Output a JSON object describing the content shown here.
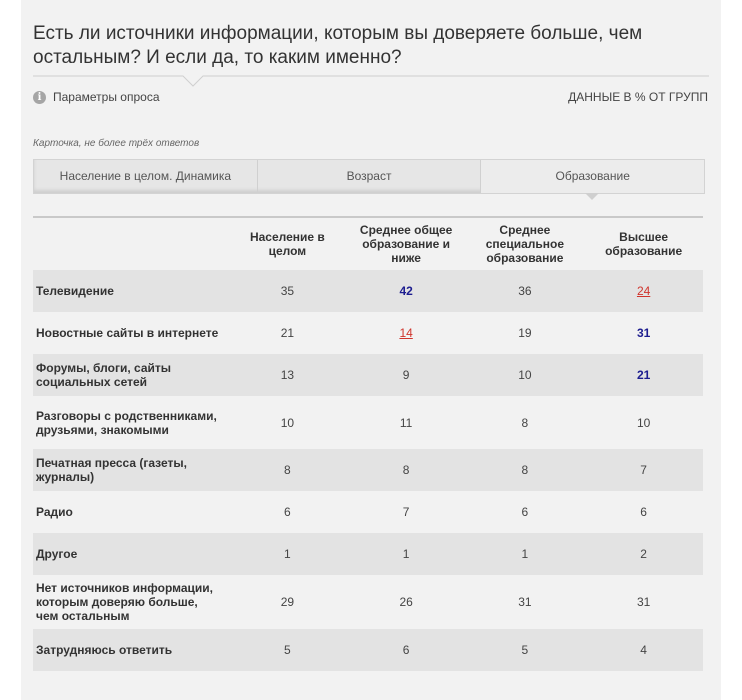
{
  "title": "Есть ли источники информации, которым вы доверяете больше, чем остальным? И если да, то каким именно?",
  "params_label": "Параметры опроса",
  "info_icon": "i",
  "units_label": "ДАННЫЕ В % ОТ ГРУПП",
  "note": "Карточка, не более трёх ответов",
  "tabs": [
    "Население в целом. Динамика",
    "Возраст",
    "Образование"
  ],
  "active_tab": 2,
  "colors": {
    "high": "#1d1d8f",
    "low": "#d0342c"
  },
  "table": {
    "headers": [
      "",
      "Население в целом",
      "Среднее общее образование и ниже",
      "Среднее специальное образование",
      "Высшее образование"
    ],
    "rows": [
      {
        "category": "Телевидение",
        "values": [
          "35",
          "42",
          "36",
          "24"
        ],
        "marks": [
          "",
          "hi",
          "",
          "lo"
        ],
        "h": 42
      },
      {
        "category": "Новостные сайты в интернете",
        "values": [
          "21",
          "14",
          "19",
          "31"
        ],
        "marks": [
          "",
          "lo",
          "",
          "hi"
        ],
        "h": 42
      },
      {
        "category": "Форумы, блоги, сайты социальных сетей",
        "values": [
          "13",
          "9",
          "10",
          "21"
        ],
        "marks": [
          "",
          "",
          "",
          "hi"
        ],
        "h": 42
      },
      {
        "category": "Разговоры с родственниками, друзьями, знакомыми",
        "values": [
          "10",
          "11",
          "8",
          "10"
        ],
        "marks": [
          "",
          "",
          "",
          ""
        ],
        "h": 53
      },
      {
        "category": "Печатная пресса (газеты, журналы)",
        "values": [
          "8",
          "8",
          "8",
          "7"
        ],
        "marks": [
          "",
          "",
          "",
          ""
        ],
        "h": 42
      },
      {
        "category": "Радио",
        "values": [
          "6",
          "7",
          "6",
          "6"
        ],
        "marks": [
          "",
          "",
          "",
          ""
        ],
        "h": 42
      },
      {
        "category": "Другое",
        "values": [
          "1",
          "1",
          "1",
          "2"
        ],
        "marks": [
          "",
          "",
          "",
          ""
        ],
        "h": 42
      },
      {
        "category": "Нет источников информации, которым доверяю больше, чем остальным",
        "values": [
          "29",
          "26",
          "31",
          "31"
        ],
        "marks": [
          "",
          "",
          "",
          ""
        ],
        "h": 54
      },
      {
        "category": "Затрудняюсь ответить",
        "values": [
          "5",
          "6",
          "5",
          "4"
        ],
        "marks": [
          "",
          "",
          "",
          ""
        ],
        "h": 42
      }
    ]
  }
}
